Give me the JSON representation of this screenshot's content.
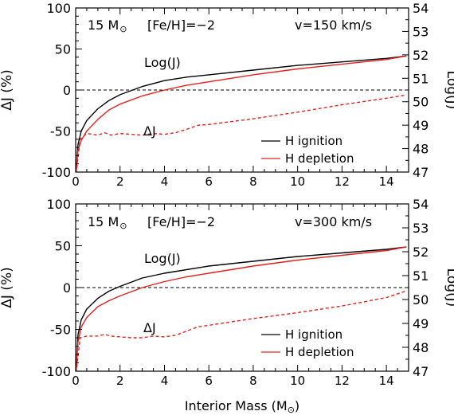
{
  "chart_data": [
    {
      "type": "line",
      "xlim": [
        0,
        15
      ],
      "ylim_left": [
        -100,
        100
      ],
      "ylim_right": [
        47,
        54
      ],
      "xticks": [
        0,
        2,
        4,
        6,
        8,
        10,
        12,
        14
      ],
      "yticks_left": [
        -100,
        -50,
        0,
        50,
        100
      ],
      "yticks_right": [
        47,
        48,
        49,
        50,
        51,
        52,
        53,
        54
      ],
      "ylabel_left": "ΔJ (%)",
      "ylabel_right": "Log(J)",
      "xlabel": "",
      "annotation_mass": "15 M",
      "annotation_feh": "[Fe/H]=−2",
      "annotation_v": "v=150 km/s",
      "curve_label_logj": "Log(J)",
      "curve_label_dj": "ΔJ",
      "legend_position": "bottom-right",
      "legend": [
        "H  ignition",
        "H  depletion"
      ],
      "colors": {
        "ignition": "#000000",
        "depletion": "#e8201c",
        "delta": "#e8201c"
      },
      "series": [
        {
          "name": "H  ignition",
          "axis": "right",
          "x": [
            0.02,
            0.1,
            0.25,
            0.5,
            1,
            1.5,
            2,
            3,
            4,
            5,
            6,
            8,
            10,
            12,
            14,
            14.9
          ],
          "y": [
            47.0,
            48.15,
            48.75,
            49.2,
            49.7,
            50.05,
            50.3,
            50.65,
            50.9,
            51.05,
            51.15,
            51.35,
            51.55,
            51.7,
            51.85,
            51.95
          ]
        },
        {
          "name": "H  depletion",
          "axis": "right",
          "x": [
            0.02,
            0.1,
            0.25,
            0.5,
            1,
            1.5,
            2,
            3,
            4,
            5,
            6,
            8,
            10,
            12,
            14,
            14.9
          ],
          "y": [
            47.0,
            47.9,
            48.35,
            48.75,
            49.25,
            49.65,
            49.9,
            50.25,
            50.5,
            50.7,
            50.85,
            51.15,
            51.4,
            51.6,
            51.8,
            51.95
          ]
        },
        {
          "name": "ΔJ",
          "axis": "left",
          "style": "dashed",
          "x": [
            0.05,
            0.2,
            0.5,
            1,
            1.3,
            1.6,
            2,
            2.5,
            3,
            3.5,
            4,
            4.5,
            5,
            5.5,
            6,
            8,
            10,
            12,
            14,
            14.9
          ],
          "y": [
            -95,
            -60,
            -53,
            -55,
            -52,
            -55,
            -53,
            -54,
            -55,
            -53,
            -54,
            -52,
            -48,
            -43,
            -42,
            -35,
            -27,
            -18,
            -10,
            -6
          ]
        }
      ]
    },
    {
      "type": "line",
      "xlim": [
        0,
        15
      ],
      "ylim_left": [
        -100,
        100
      ],
      "ylim_right": [
        47,
        54
      ],
      "xticks": [
        0,
        2,
        4,
        6,
        8,
        10,
        12,
        14
      ],
      "yticks_left": [
        -100,
        -50,
        0,
        50,
        100
      ],
      "yticks_right": [
        47,
        48,
        49,
        50,
        51,
        52,
        53,
        54
      ],
      "ylabel_left": "ΔJ (%)",
      "ylabel_right": "Log(J)",
      "xlabel": "Interior Mass (M",
      "xlabel_close": ")",
      "annotation_mass": "15 M",
      "annotation_feh": "[Fe/H]=−2",
      "annotation_v": "v=300 km/s",
      "curve_label_logj": "Log(J)",
      "curve_label_dj": "ΔJ",
      "legend_position": "bottom-right",
      "legend": [
        "H  ignition",
        "H  depletion"
      ],
      "colors": {
        "ignition": "#000000",
        "depletion": "#e8201c",
        "delta": "#e8201c"
      },
      "series": [
        {
          "name": "H  ignition",
          "axis": "right",
          "x": [
            0.02,
            0.1,
            0.25,
            0.5,
            1,
            1.5,
            2,
            3,
            4,
            5,
            6,
            8,
            10,
            12,
            14,
            14.9
          ],
          "y": [
            47.0,
            48.5,
            49.15,
            49.6,
            50.05,
            50.35,
            50.55,
            50.9,
            51.1,
            51.25,
            51.4,
            51.6,
            51.8,
            51.95,
            52.1,
            52.2
          ]
        },
        {
          "name": "H  depletion",
          "axis": "right",
          "x": [
            0.02,
            0.1,
            0.25,
            0.5,
            1,
            1.5,
            2,
            3,
            4,
            5,
            6,
            8,
            10,
            12,
            14,
            14.9
          ],
          "y": [
            47.0,
            48.2,
            48.85,
            49.25,
            49.7,
            49.95,
            50.15,
            50.5,
            50.75,
            50.95,
            51.1,
            51.4,
            51.65,
            51.85,
            52.05,
            52.2
          ]
        },
        {
          "name": "ΔJ",
          "axis": "left",
          "style": "dashed",
          "x": [
            0.05,
            0.2,
            0.5,
            1,
            1.3,
            1.6,
            2,
            2.5,
            3,
            3.5,
            4,
            4.5,
            5,
            5.5,
            6,
            8,
            10,
            12,
            14,
            14.9
          ],
          "y": [
            -95,
            -60,
            -58,
            -58,
            -56,
            -58,
            -59,
            -60,
            -60,
            -58,
            -59,
            -57,
            -52,
            -47,
            -45,
            -37,
            -30,
            -22,
            -12,
            -4
          ]
        }
      ]
    }
  ]
}
